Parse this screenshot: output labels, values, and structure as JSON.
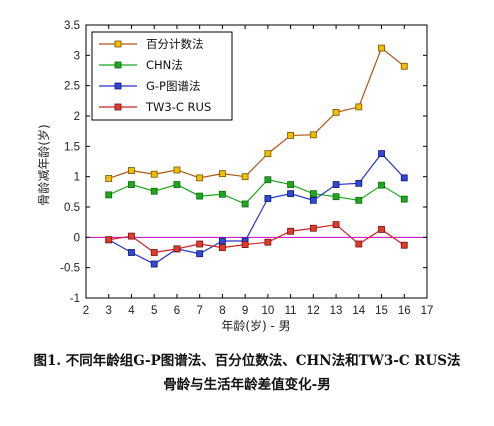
{
  "chart_data": {
    "type": "line",
    "xlabel": "年龄(岁) - 男",
    "ylabel": "骨龄减年龄(岁)",
    "xlim": [
      2,
      17
    ],
    "ylim": [
      -1,
      3.5
    ],
    "xticks": [
      2,
      3,
      4,
      5,
      6,
      7,
      8,
      9,
      10,
      11,
      12,
      13,
      14,
      15,
      16,
      17
    ],
    "yticks": [
      -1,
      -0.5,
      0,
      0.5,
      1,
      1.5,
      2,
      2.5,
      3,
      3.5
    ],
    "ytick_labels": [
      "-1",
      "-0.5",
      "0",
      "0.5",
      "1",
      "1.5",
      "2",
      "2.5",
      "3",
      "3.5"
    ],
    "reference_line": {
      "y": 0,
      "color": "#cc00cc"
    },
    "legend_position": "top-left",
    "grid": false,
    "x": [
      3,
      4,
      5,
      6,
      7,
      8,
      9,
      10,
      11,
      12,
      13,
      14,
      15,
      16
    ],
    "series": [
      {
        "name": "百分计数法",
        "color": "#b05418",
        "marker_fill": "#f0c000",
        "marker_edge": "#7a5000",
        "values": [
          0.97,
          1.1,
          1.04,
          1.11,
          0.98,
          1.05,
          1.0,
          1.38,
          1.68,
          1.69,
          2.06,
          2.15,
          3.12,
          2.82
        ]
      },
      {
        "name": "CHN法",
        "color": "#1ea81e",
        "marker_fill": "#1ea81e",
        "marker_edge": "#0d6a0d",
        "values": [
          0.7,
          0.87,
          0.76,
          0.87,
          0.68,
          0.71,
          0.55,
          0.95,
          0.87,
          0.72,
          0.67,
          0.61,
          0.86,
          0.63
        ]
      },
      {
        "name": "G-P图谱法",
        "color": "#2233cc",
        "marker_fill": "#2f48d8",
        "marker_edge": "#101a70",
        "values": [
          -0.04,
          -0.25,
          -0.44,
          -0.19,
          -0.27,
          -0.06,
          -0.06,
          0.64,
          0.72,
          0.61,
          0.87,
          0.89,
          1.38,
          0.98
        ]
      },
      {
        "name": "TW3-C RUS",
        "color": "#cc2222",
        "marker_fill": "#e03b2c",
        "marker_edge": "#7a1010",
        "values": [
          -0.04,
          0.02,
          -0.25,
          -0.19,
          -0.11,
          -0.17,
          -0.12,
          -0.08,
          0.1,
          0.15,
          0.21,
          -0.11,
          0.13,
          -0.13
        ]
      }
    ]
  },
  "caption": {
    "line1": "图1.  不同年龄组G-P图谱法、百分位数法、CHN法和TW3-C RUS法",
    "line2": "骨龄与生活年龄差值变化-男"
  }
}
